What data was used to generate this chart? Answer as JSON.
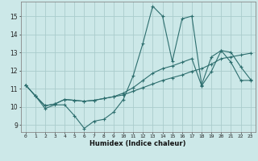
{
  "title": "",
  "xlabel": "Humidex (Indice chaleur)",
  "bg_color": "#cce8e8",
  "grid_color": "#aacccc",
  "line_color": "#2d6e6e",
  "xlim": [
    -0.5,
    23.5
  ],
  "ylim": [
    8.6,
    15.8
  ],
  "xticks": [
    0,
    1,
    2,
    3,
    4,
    5,
    6,
    7,
    8,
    9,
    10,
    11,
    12,
    13,
    14,
    15,
    16,
    17,
    18,
    19,
    20,
    21,
    22,
    23
  ],
  "yticks": [
    9,
    10,
    11,
    12,
    13,
    14,
    15
  ],
  "line1_y": [
    11.2,
    10.6,
    9.9,
    10.1,
    10.1,
    9.5,
    8.8,
    9.2,
    9.3,
    9.7,
    10.4,
    11.7,
    13.5,
    15.55,
    15.0,
    12.5,
    14.85,
    15.0,
    11.2,
    12.75,
    13.1,
    13.0,
    12.2,
    11.5
  ],
  "line2_y": [
    11.2,
    10.6,
    10.05,
    10.15,
    10.4,
    10.35,
    10.3,
    10.35,
    10.45,
    10.55,
    10.65,
    10.85,
    11.05,
    11.25,
    11.45,
    11.6,
    11.75,
    11.95,
    12.1,
    12.35,
    12.65,
    12.75,
    12.85,
    12.95
  ],
  "line3_y": [
    11.2,
    10.6,
    10.05,
    10.15,
    10.4,
    10.35,
    10.3,
    10.35,
    10.45,
    10.55,
    10.75,
    11.05,
    11.45,
    11.85,
    12.1,
    12.25,
    12.45,
    12.65,
    11.15,
    11.95,
    13.1,
    12.45,
    11.45,
    11.45
  ]
}
